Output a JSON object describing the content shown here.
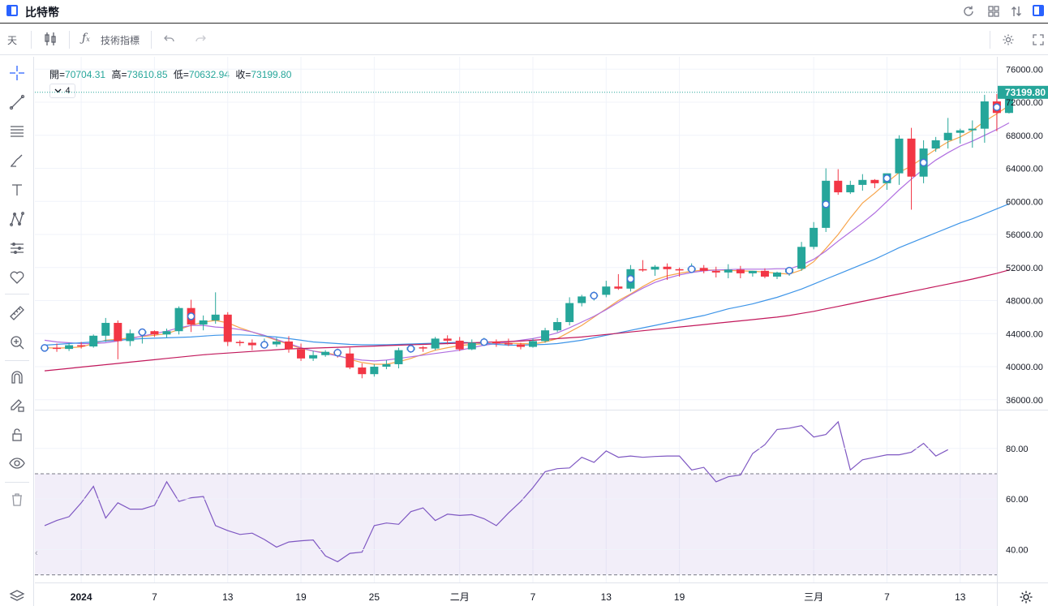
{
  "window": {
    "title": "比特幣"
  },
  "toolbar": {
    "interval": "天",
    "indicators_label": "技術指標"
  },
  "legend": {
    "open_label": "開",
    "open": "70704.31",
    "high_label": "高",
    "high": "73610.85",
    "low_label": "低",
    "low": "70632.94",
    "close_label": "收",
    "close": "73199.80",
    "collapse_count": "4"
  },
  "colors": {
    "up": "#26a69a",
    "down": "#f23645",
    "rsi": "#7e57c2",
    "rsi_band": "#7e57c2",
    "ma_orange": "#f7a44a",
    "ma_purple": "#b06ee0",
    "ma_blue": "#3e95e8",
    "ma_red": "#c2185b"
  },
  "icons": [
    "layout-icon",
    "refresh-icon",
    "grid-icon",
    "compare-icon",
    "panel-icon",
    "candles-icon",
    "fx-icon",
    "undo-icon",
    "redo-icon",
    "settings-icon",
    "fullscreen-icon",
    "crosshair-icon",
    "trendline-icon",
    "fib-icon",
    "brush-icon",
    "text-icon",
    "pattern-icon",
    "measure-icon",
    "heart-icon",
    "ruler-icon",
    "zoom-icon",
    "magnet-icon",
    "lock-draw-icon",
    "lock-icon",
    "eye-icon",
    "trash-icon",
    "layers-icon",
    "gear-icon"
  ],
  "chart_data": {
    "type": "candlestick",
    "symbol": "比特幣",
    "price_axis": {
      "ticks": [
        "76000.00",
        "72000.00",
        "68000.00",
        "64000.00",
        "60000.00",
        "56000.00",
        "52000.00",
        "48000.00",
        "44000.00",
        "40000.00",
        "36000.00"
      ],
      "ylim": [
        34800,
        77500
      ]
    },
    "last_price_label": "73199.80",
    "x_tick_labels": [
      {
        "i": 3,
        "label": "2024"
      },
      {
        "i": 9,
        "label": "7"
      },
      {
        "i": 15,
        "label": "13"
      },
      {
        "i": 21,
        "label": "19"
      },
      {
        "i": 27,
        "label": "25"
      },
      {
        "i": 34,
        "label": "二月"
      },
      {
        "i": 40,
        "label": "7"
      },
      {
        "i": 46,
        "label": "13"
      },
      {
        "i": 52,
        "label": "19"
      },
      {
        "i": 63,
        "label": "三月"
      },
      {
        "i": 69,
        "label": "7"
      },
      {
        "i": 75,
        "label": "13"
      }
    ],
    "candles": [
      [
        42250,
        42700,
        41900,
        42300
      ],
      [
        42300,
        42800,
        41800,
        42150
      ],
      [
        42150,
        42900,
        41900,
        42600
      ],
      [
        42600,
        43000,
        42200,
        42450
      ],
      [
        42450,
        43900,
        42300,
        43750
      ],
      [
        43750,
        45900,
        43000,
        45300
      ],
      [
        45300,
        45600,
        40900,
        43100
      ],
      [
        43100,
        44500,
        42500,
        44050
      ],
      [
        44050,
        44600,
        42800,
        44300
      ],
      [
        44300,
        44400,
        43600,
        43900
      ],
      [
        43900,
        44600,
        43500,
        44300
      ],
      [
        44300,
        47300,
        43900,
        47100
      ],
      [
        47100,
        48100,
        44200,
        45100
      ],
      [
        45100,
        46200,
        44400,
        45600
      ],
      [
        45600,
        49000,
        45200,
        46300
      ],
      [
        46300,
        46600,
        42500,
        43000
      ],
      [
        43000,
        43200,
        42500,
        42900
      ],
      [
        42900,
        43300,
        42000,
        42600
      ],
      [
        42600,
        43400,
        42200,
        42700
      ],
      [
        42700,
        43500,
        42400,
        43050
      ],
      [
        43050,
        43700,
        41700,
        42100
      ],
      [
        42100,
        42800,
        40700,
        41000
      ],
      [
        41000,
        41900,
        40700,
        41400
      ],
      [
        41400,
        42000,
        41200,
        41800
      ],
      [
        41800,
        42200,
        41100,
        41600
      ],
      [
        41600,
        42300,
        39700,
        39900
      ],
      [
        39900,
        40400,
        38600,
        39100
      ],
      [
        39100,
        40300,
        38800,
        40000
      ],
      [
        40000,
        40800,
        39700,
        40300
      ],
      [
        40300,
        42300,
        39800,
        42000
      ],
      [
        42000,
        42500,
        41700,
        42350
      ],
      [
        42350,
        42500,
        41800,
        42200
      ],
      [
        42200,
        43600,
        42000,
        43400
      ],
      [
        43400,
        43800,
        42700,
        43150
      ],
      [
        43150,
        43600,
        41900,
        42100
      ],
      [
        42100,
        43300,
        42000,
        42900
      ],
      [
        42900,
        43500,
        42700,
        43050
      ],
      [
        43050,
        43300,
        42400,
        42850
      ],
      [
        42850,
        43400,
        42500,
        42700
      ],
      [
        42700,
        42900,
        42100,
        42400
      ],
      [
        42400,
        43400,
        42300,
        43100
      ],
      [
        43100,
        44700,
        42900,
        44400
      ],
      [
        44400,
        45900,
        44200,
        45400
      ],
      [
        45400,
        48400,
        45000,
        47700
      ],
      [
        47700,
        48700,
        47300,
        48500
      ],
      [
        48500,
        49100,
        48000,
        48700
      ],
      [
        48700,
        50400,
        48400,
        49700
      ],
      [
        49700,
        51200,
        49300,
        49450
      ],
      [
        49450,
        52300,
        49100,
        51800
      ],
      [
        51800,
        52900,
        51500,
        51750
      ],
      [
        51750,
        52300,
        51000,
        52100
      ],
      [
        52100,
        52500,
        50500,
        51800
      ],
      [
        51800,
        52000,
        50900,
        51650
      ],
      [
        51650,
        52500,
        51400,
        51950
      ],
      [
        51950,
        52300,
        51300,
        51600
      ],
      [
        51600,
        52100,
        50800,
        51400
      ],
      [
        51400,
        52400,
        50700,
        51750
      ],
      [
        51750,
        52200,
        50700,
        51300
      ],
      [
        51300,
        51600,
        50900,
        51600
      ],
      [
        51600,
        51900,
        50700,
        50900
      ],
      [
        50900,
        51500,
        50600,
        51400
      ],
      [
        51400,
        51900,
        51000,
        51850
      ],
      [
        51850,
        55100,
        51600,
        54500
      ],
      [
        54500,
        57500,
        54200,
        56800
      ],
      [
        56800,
        64000,
        56300,
        62500
      ],
      [
        62500,
        63900,
        60800,
        61100
      ],
      [
        61100,
        62500,
        60900,
        62000
      ],
      [
        62000,
        63300,
        61300,
        62600
      ],
      [
        62600,
        62700,
        61600,
        62200
      ],
      [
        62200,
        63200,
        61400,
        63400
      ],
      [
        63400,
        68000,
        62000,
        67600
      ],
      [
        67600,
        68900,
        59000,
        63000
      ],
      [
        63000,
        67400,
        62200,
        66400
      ],
      [
        66400,
        67800,
        66000,
        67400
      ],
      [
        67400,
        70100,
        66400,
        68300
      ],
      [
        68300,
        68800,
        67000,
        68600
      ],
      [
        68600,
        69800,
        66500,
        68800
      ],
      [
        68800,
        72900,
        67100,
        72100
      ],
      [
        72100,
        73000,
        68500,
        70700
      ],
      [
        70704.31,
        73610.85,
        70632.94,
        73199.8
      ]
    ],
    "dividend_markers": [
      0,
      8,
      12,
      18,
      24,
      30,
      36,
      45,
      48,
      53,
      61,
      64,
      69,
      72,
      78
    ],
    "rsi": {
      "axis_ticks": [
        "80.00",
        "60.00",
        "40.00"
      ],
      "ylim": [
        27,
        95
      ],
      "upper_band": 70,
      "lower_band": 30,
      "values": [
        49.5,
        51.5,
        53.0,
        58.5,
        65.0,
        52.5,
        58.5,
        56.0,
        56.0,
        57.5,
        66.8,
        59.0,
        60.5,
        61.0,
        49.5,
        47.5,
        46.0,
        46.5,
        44.0,
        41.0,
        43.0,
        43.5,
        43.8,
        37.5,
        35.2,
        38.5,
        39.0,
        49.5,
        50.5,
        50.0,
        55.0,
        56.5,
        51.5,
        54.0,
        53.5,
        53.8,
        52.2,
        49.5,
        54.5,
        59.0,
        64.5,
        70.8,
        72.0,
        72.3,
        76.5,
        74.5,
        79.0,
        76.5,
        77.0,
        76.5,
        76.8,
        77.0,
        77.0,
        71.5,
        72.5,
        66.8,
        68.8,
        69.5,
        78.0,
        81.5,
        87.5,
        88.0,
        89.0,
        84.5,
        85.5,
        90.5,
        71.5,
        75.5,
        76.5,
        77.5,
        77.5,
        78.5,
        82.0,
        77.0,
        79.5
      ]
    },
    "moving_averages": [
      {
        "color": "#f7a44a",
        "values": [
          42300,
          42250,
          42300,
          42400,
          42800,
          43200,
          43300,
          43500,
          43650,
          43800,
          44000,
          44500,
          45000,
          45400,
          45600,
          45300,
          44700,
          44200,
          43700,
          43200,
          42700,
          42200,
          41900,
          41700,
          41400,
          40900,
          40500,
          40300,
          40300,
          40600,
          41000,
          41500,
          42000,
          42300,
          42550,
          42700,
          42750,
          42800,
          42850,
          42800,
          42750,
          43000,
          43400,
          44200,
          45000,
          46000,
          47000,
          48000,
          48800,
          49700,
          50500,
          51000,
          51300,
          51550,
          51700,
          51700,
          51650,
          51600,
          51550,
          51450,
          51300,
          51200,
          51700,
          52700,
          54300,
          56000,
          58000,
          59800,
          61000,
          62300,
          63500,
          64300,
          65300,
          66300,
          67200,
          67800,
          68600,
          69700,
          70600,
          71600
        ]
      },
      {
        "color": "#b06ee0",
        "values": [
          43200,
          43000,
          42900,
          42800,
          42800,
          42900,
          43100,
          43400,
          43700,
          44000,
          44300,
          44700,
          45000,
          45000,
          44800,
          44700,
          44500,
          44200,
          43800,
          43300,
          42800,
          42300,
          41900,
          41600,
          41300,
          41000,
          40800,
          40700,
          40800,
          41000,
          41200,
          41400,
          41600,
          41800,
          42000,
          42300,
          42600,
          42800,
          43000,
          43200,
          43400,
          43700,
          44100,
          44700,
          45400,
          46100,
          46900,
          47800,
          48700,
          49500,
          50200,
          50700,
          51100,
          51400,
          51600,
          51700,
          51750,
          51800,
          51800,
          51800,
          51850,
          51850,
          52300,
          53000,
          54000,
          55200,
          56300,
          57400,
          58600,
          60000,
          61400,
          62700,
          63900,
          65000,
          65900,
          66700,
          67300,
          68000,
          68700,
          69500
        ]
      },
      {
        "color": "#3e95e8",
        "values": [
          42600,
          42700,
          42800,
          42900,
          43000,
          43100,
          43200,
          43300,
          43400,
          43450,
          43500,
          43550,
          43600,
          43700,
          43800,
          43850,
          43850,
          43800,
          43700,
          43600,
          43400,
          43200,
          43000,
          42900,
          42800,
          42700,
          42650,
          42650,
          42650,
          42700,
          42750,
          42800,
          42850,
          42900,
          42950,
          42900,
          42850,
          42700,
          42600,
          42600,
          42650,
          42700,
          42800,
          43000,
          43200,
          43500,
          43800,
          44100,
          44400,
          44700,
          45000,
          45300,
          45600,
          45900,
          46200,
          46600,
          47000,
          47300,
          47600,
          48000,
          48400,
          48900,
          49400,
          50000,
          50600,
          51200,
          51800,
          52400,
          53000,
          53700,
          54400,
          55000,
          55600,
          56200,
          56800,
          57400,
          57900,
          58500,
          59100,
          59700
        ]
      },
      {
        "color": "#c2185b",
        "values": [
          39500,
          39650,
          39800,
          39950,
          40100,
          40250,
          40400,
          40550,
          40700,
          40850,
          41000,
          41150,
          41300,
          41450,
          41550,
          41650,
          41750,
          41850,
          41950,
          42050,
          42150,
          42200,
          42250,
          42300,
          42350,
          42400,
          42450,
          42500,
          42550,
          42600,
          42650,
          42700,
          42750,
          42800,
          42850,
          42900,
          42950,
          43000,
          43050,
          43100,
          43200,
          43300,
          43400,
          43500,
          43600,
          43750,
          43900,
          44050,
          44200,
          44350,
          44500,
          44650,
          44800,
          44950,
          45100,
          45250,
          45400,
          45550,
          45700,
          45850,
          46000,
          46200,
          46450,
          46700,
          47000,
          47300,
          47600,
          47900,
          48200,
          48500,
          48800,
          49100,
          49400,
          49700,
          50000,
          50300,
          50600,
          50950,
          51300,
          51700
        ]
      }
    ]
  }
}
